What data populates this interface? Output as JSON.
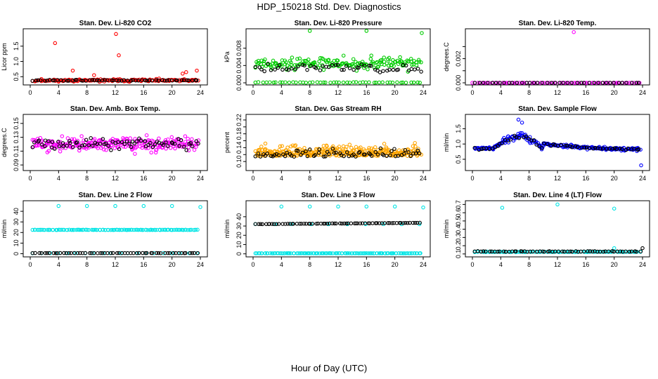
{
  "title": "HDP_150218  Std. Dev. Diagnostics",
  "xlabel": "Hour of Day (UTC)",
  "chart_data": [
    {
      "type": "scatter",
      "title": "Stan. Dev. Li-820 CO2",
      "ylabel": "Licor ppm",
      "xlim": [
        0,
        24
      ],
      "ylim": [
        0.3,
        2.0
      ],
      "xticks": [
        0,
        4,
        8,
        12,
        16,
        20,
        24
      ],
      "yticks": [
        0.5,
        1.0,
        1.5
      ],
      "ytick_labels": [
        "0.5",
        "1.0",
        "1.5"
      ],
      "series": [
        {
          "name": "color",
          "color": "#ff0000",
          "n": 150,
          "base": 0.38,
          "spread": 0.07,
          "skew": 0,
          "seed": 11,
          "extra": [
            [
              3.5,
              1.6
            ],
            [
              12.1,
              1.9
            ],
            [
              12.5,
              1.2
            ],
            [
              6.0,
              0.7
            ],
            [
              22.0,
              0.65
            ],
            [
              23.5,
              0.7
            ],
            [
              21.5,
              0.6
            ],
            [
              9.0,
              0.55
            ]
          ]
        },
        {
          "name": "black",
          "color": "#000000",
          "n": 60,
          "base": 0.38,
          "spread": 0.03,
          "skew": 0,
          "seed": 12,
          "extra": []
        }
      ]
    },
    {
      "type": "scatter",
      "title": "Stan. Dev. Li-820 Pressure",
      "ylabel": "kPa",
      "xlim": [
        0,
        24
      ],
      "ylim": [
        0.0,
        0.012
      ],
      "xticks": [
        0,
        4,
        8,
        12,
        16,
        20,
        24
      ],
      "yticks": [
        0.0,
        0.004,
        0.008
      ],
      "ytick_labels": [
        "0.000",
        "0.004",
        "0.008"
      ],
      "series": [
        {
          "name": "color",
          "color": "#00cc00",
          "n": 170,
          "base": 0.0045,
          "spread": 0.0025,
          "skew": 0,
          "seed": 21,
          "extra": [
            [
              8.0,
              0.012
            ],
            [
              16.0,
              0.012
            ],
            [
              23.8,
              0.0115
            ]
          ]
        },
        {
          "name": "color-zero",
          "color": "#00cc00",
          "n": 50,
          "base": 0.0001,
          "spread": 0.0001,
          "skew": 0,
          "seed": 22,
          "extra": []
        },
        {
          "name": "black",
          "color": "#000000",
          "n": 55,
          "base": 0.0035,
          "spread": 0.002,
          "skew": 0,
          "seed": 23,
          "extra": []
        }
      ]
    },
    {
      "type": "scatter",
      "title": "Stan. Dev. Li-820 Temp.",
      "ylabel": "degrees.C",
      "xlim": [
        0,
        24
      ],
      "ylim": [
        0.0,
        0.0043
      ],
      "xticks": [
        0,
        4,
        8,
        12,
        16,
        20,
        24
      ],
      "yticks": [
        0.0,
        0.001,
        0.002,
        0.003
      ],
      "ytick_labels": [
        "0.000",
        "",
        "0.002",
        ""
      ],
      "series": [
        {
          "name": "color",
          "color": "#ff00ff",
          "n": 80,
          "base": 0.0,
          "spread": 0.0,
          "skew": 0,
          "seed": 31,
          "extra": [
            [
              14.3,
              0.0042
            ],
            [
              0.0,
              0.0
            ]
          ]
        },
        {
          "name": "black",
          "color": "#000000",
          "n": 40,
          "base": 0.0,
          "spread": 0.0,
          "skew": 0,
          "seed": 32,
          "extra": []
        }
      ]
    },
    {
      "type": "scatter",
      "title": "Stan. Dev. Amb. Box Temp.",
      "ylabel": "degrees.C",
      "xlim": [
        0,
        24
      ],
      "ylim": [
        0.085,
        0.16
      ],
      "xticks": [
        0,
        4,
        8,
        12,
        16,
        20,
        24
      ],
      "yticks": [
        0.09,
        0.11,
        0.13,
        0.15
      ],
      "ytick_labels": [
        "0.09",
        "0.11",
        "0.13",
        "0.15"
      ],
      "series": [
        {
          "name": "color",
          "color": "#ff00ff",
          "n": 250,
          "base": 0.12,
          "spread": 0.016,
          "skew": 0,
          "seed": 41,
          "extra": []
        },
        {
          "name": "black",
          "color": "#000000",
          "n": 75,
          "base": 0.12,
          "spread": 0.012,
          "skew": 0,
          "seed": 42,
          "extra": []
        }
      ]
    },
    {
      "type": "scatter",
      "title": "Stan. Dev. Gas Stream RH",
      "ylabel": "percent",
      "xlim": [
        0,
        24
      ],
      "ylim": [
        0.08,
        0.23
      ],
      "xticks": [
        0,
        4,
        8,
        12,
        16,
        20,
        24
      ],
      "yticks": [
        0.1,
        0.12,
        0.14,
        0.16,
        0.18,
        0.2,
        0.22
      ],
      "ytick_labels": [
        "0.10",
        "",
        "0.14",
        "",
        "0.18",
        "",
        "0.22"
      ],
      "series": [
        {
          "name": "color",
          "color": "#ffa500",
          "n": 320,
          "base": 0.125,
          "spread": 0.03,
          "skew": 1,
          "seed": 51,
          "extra": []
        },
        {
          "name": "black",
          "color": "#000000",
          "n": 70,
          "base": 0.12,
          "spread": 0.02,
          "skew": 1,
          "seed": 52,
          "extra": []
        }
      ]
    },
    {
      "type": "scatter",
      "title": "Stan. Dev. Sample Flow",
      "ylabel": "ml/min",
      "xlim": [
        0,
        24
      ],
      "ylim": [
        0.2,
        1.9
      ],
      "xticks": [
        0,
        4,
        8,
        12,
        16,
        20,
        24
      ],
      "yticks": [
        0.5,
        1.0,
        1.5
      ],
      "ytick_labels": [
        "0.5",
        "1.0",
        "1.5"
      ],
      "series": [
        {
          "name": "color",
          "color": "#0000ff",
          "n": 230,
          "base": 0.0,
          "spread": 0.08,
          "skew": 0,
          "seed": 61,
          "profile": "flow",
          "extra": [
            [
              23.8,
              0.3
            ],
            [
              6.5,
              1.8
            ],
            [
              7.0,
              1.7
            ]
          ]
        },
        {
          "name": "black",
          "color": "#000000",
          "n": 60,
          "base": 0.0,
          "spread": 0.06,
          "skew": 0,
          "seed": 62,
          "profile": "flow",
          "extra": []
        }
      ]
    },
    {
      "type": "scatter",
      "title": "Stan. Dev. Line 2 Flow",
      "ylabel": "ml/min",
      "xlim": [
        0,
        24
      ],
      "ylim": [
        -1,
        48
      ],
      "xticks": [
        0,
        4,
        8,
        12,
        16,
        20,
        24
      ],
      "yticks": [
        0,
        10,
        20,
        30,
        40
      ],
      "ytick_labels": [
        "0",
        "10",
        "20",
        "30",
        "40"
      ],
      "series": [
        {
          "name": "color",
          "color": "#00e5e5",
          "n": 120,
          "base": 22.5,
          "spread": 0.25,
          "skew": 0,
          "seed": 71,
          "extra": [
            [
              4,
              45
            ],
            [
              8,
              45
            ],
            [
              12,
              45
            ],
            [
              16,
              45
            ],
            [
              20,
              45
            ],
            [
              24,
              44
            ]
          ]
        },
        {
          "name": "color-low",
          "color": "#00e5e5",
          "n": 20,
          "base": 0.5,
          "spread": 0.1,
          "skew": 0,
          "seed": 72,
          "extra": []
        },
        {
          "name": "black",
          "color": "#000000",
          "n": 60,
          "base": 0.6,
          "spread": 0.1,
          "skew": 0,
          "seed": 73,
          "extra": []
        }
      ]
    },
    {
      "type": "scatter",
      "title": "Stan. Dev. Line 3 Flow",
      "ylabel": "ml/min",
      "xlim": [
        0,
        24
      ],
      "ylim": [
        -1,
        55
      ],
      "xticks": [
        0,
        4,
        8,
        12,
        16,
        20,
        24
      ],
      "yticks": [
        0,
        10,
        20,
        30,
        40
      ],
      "ytick_labels": [
        "0",
        "10",
        "20",
        "30",
        "40"
      ],
      "series": [
        {
          "name": "color-low",
          "color": "#00e5e5",
          "n": 120,
          "base": 0.6,
          "spread": 0.15,
          "skew": 0,
          "seed": 81,
          "extra": [
            [
              4,
              51
            ],
            [
              8,
              51
            ],
            [
              12,
              51
            ],
            [
              16,
              51
            ],
            [
              20,
              51
            ],
            [
              24,
              50
            ]
          ]
        },
        {
          "name": "color",
          "color": "#00e5e5",
          "n": 10,
          "base": 32.0,
          "spread": 0.2,
          "skew": 0,
          "seed": 82,
          "extra": []
        },
        {
          "name": "black",
          "color": "#000000",
          "n": 70,
          "base": 32.0,
          "spread": 0.2,
          "skew": 0,
          "seed": 83,
          "profile": "rise",
          "extra": []
        }
      ]
    },
    {
      "type": "scatter",
      "title": "Stan. Dev. Line 4 (LT) Flow",
      "ylabel": "ml/min",
      "xlim": [
        0,
        24
      ],
      "ylim": [
        0.09,
        0.72
      ],
      "xticks": [
        0,
        4,
        8,
        12,
        16,
        20,
        24
      ],
      "yticks": [
        0.1,
        0.2,
        0.3,
        0.4,
        0.5,
        0.6,
        0.7
      ],
      "ytick_labels": [
        "0.1",
        "0.2",
        "0.3",
        "0.4",
        "0.5",
        "0.6",
        "0.7"
      ],
      "series": [
        {
          "name": "color",
          "color": "#00e5e5",
          "n": 100,
          "base": 0.125,
          "spread": 0.006,
          "skew": 0,
          "seed": 91,
          "extra": [
            [
              4.2,
              0.66
            ],
            [
              12.0,
              0.7
            ],
            [
              20.0,
              0.65
            ],
            [
              20.0,
              0.17
            ]
          ]
        },
        {
          "name": "black",
          "color": "#000000",
          "n": 60,
          "base": 0.13,
          "spread": 0.008,
          "skew": 0,
          "seed": 92,
          "extra": [
            [
              24,
              0.17
            ]
          ]
        }
      ]
    }
  ]
}
